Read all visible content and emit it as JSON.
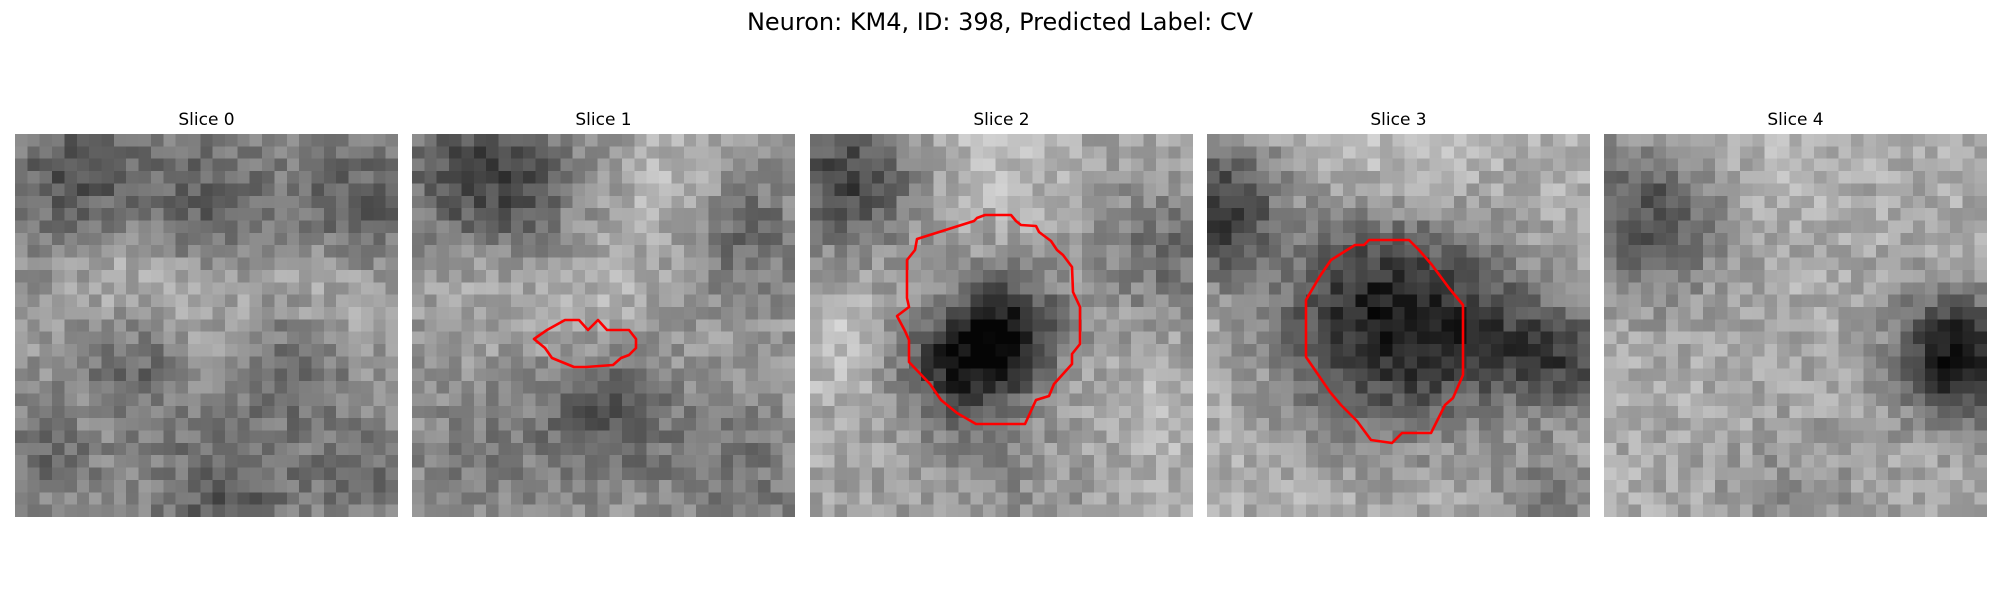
{
  "title": "Neuron: KM4, ID: 398, Predicted Label: CV",
  "colors": {
    "contour": "#ff0000",
    "background": "#ffffff"
  },
  "panels": [
    {
      "label": "Slice 0"
    },
    {
      "label": "Slice 1"
    },
    {
      "label": "Slice 2"
    },
    {
      "label": "Slice 3"
    },
    {
      "label": "Slice 4"
    }
  ]
}
